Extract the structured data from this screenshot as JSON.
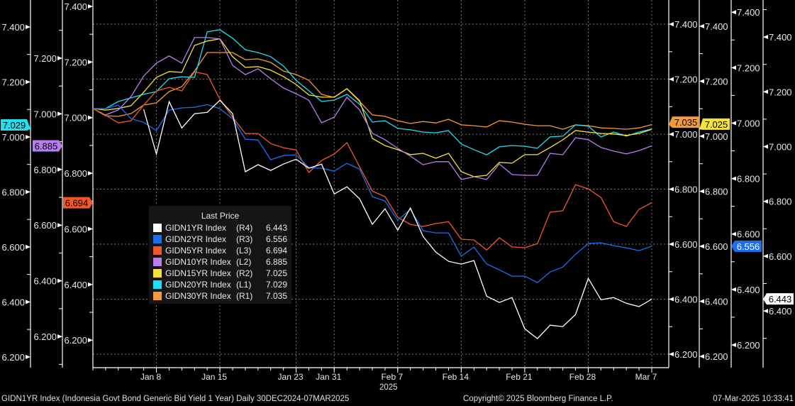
{
  "chart_data": {
    "type": "line",
    "title": "",
    "year_label": "2025",
    "x_count": 45,
    "x_ticks": [
      {
        "index": 5,
        "label": "Jan 8"
      },
      {
        "index": 10,
        "label": "Jan 15"
      },
      {
        "index": 16,
        "label": "Jan 23"
      },
      {
        "index": 19,
        "label": "Jan 31"
      },
      {
        "index": 24,
        "label": "Feb 7"
      },
      {
        "index": 29,
        "label": "Feb 14"
      },
      {
        "index": 34,
        "label": "Feb 21"
      },
      {
        "index": 39,
        "label": "Feb 28"
      },
      {
        "index": 44,
        "label": "Mar 7"
      }
    ],
    "grid": true,
    "grid_axis": "R1",
    "axes": [
      {
        "id": "L1",
        "side": "left",
        "range": [
          6.161,
          7.498
        ],
        "ticks": [
          6.2,
          6.4,
          6.6,
          6.8,
          7.0,
          7.2,
          7.4
        ]
      },
      {
        "id": "L2",
        "side": "left",
        "range": [
          6.088,
          7.409
        ],
        "ticks": [
          6.2,
          6.4,
          6.6,
          6.8,
          7.0,
          7.2
        ]
      },
      {
        "id": "L3",
        "side": "left",
        "range": [
          6.101,
          7.423
        ],
        "ticks": [
          6.2,
          6.4,
          6.6,
          6.8,
          7.0,
          7.2,
          7.4
        ]
      },
      {
        "id": "R1",
        "side": "right",
        "range": [
          6.151,
          7.488
        ],
        "ticks": [
          6.2,
          6.4,
          6.6,
          6.8,
          7.0,
          7.2,
          7.4
        ]
      },
      {
        "id": "R2",
        "side": "right",
        "range": [
          6.159,
          7.495
        ],
        "ticks": [
          6.2,
          6.4,
          6.6,
          6.8,
          7.0,
          7.2,
          7.4
        ]
      },
      {
        "id": "R3",
        "side": "right",
        "range": [
          6.118,
          7.444
        ],
        "ticks": [
          6.2,
          6.4,
          6.6,
          6.8,
          7.0,
          7.2,
          7.4
        ]
      },
      {
        "id": "R4",
        "side": "right",
        "range": [
          6.193,
          7.535
        ],
        "ticks": [
          6.4,
          6.6,
          6.8,
          7.0,
          7.2,
          7.4
        ]
      }
    ],
    "legend_title": "Last Price",
    "legend_position": "lower-left",
    "series": [
      {
        "name": "GIDN1YR Index",
        "axis": "R4",
        "last": "6.443",
        "color": "#ffffff",
        "tag_text": "#000000",
        "values": [
          null,
          null,
          null,
          null,
          7.136,
          6.973,
          7.164,
          7.068,
          7.12,
          7.125,
          7.169,
          7.12,
          6.908,
          6.934,
          6.913,
          6.936,
          6.954,
          6.921,
          6.936,
          6.827,
          6.853,
          6.809,
          6.716,
          6.773,
          6.695,
          6.776,
          6.672,
          6.615,
          6.581,
          6.571,
          6.584,
          6.454,
          6.431,
          6.449,
          6.335,
          6.299,
          6.348,
          6.343,
          6.387,
          6.519,
          6.441,
          6.449,
          6.428,
          6.416,
          6.443
        ]
      },
      {
        "name": "GIDN2YR Index",
        "axis": "R3",
        "last": "6.556",
        "color": "#1a6ff0",
        "tag_text": "#ffffff",
        "values": [
          7.052,
          7.052,
          7.065,
          7.016,
          7.003,
          6.973,
          7.047,
          7.055,
          7.057,
          7.067,
          7.052,
          7.016,
          6.942,
          6.939,
          6.868,
          6.883,
          6.886,
          6.84,
          6.837,
          6.827,
          6.855,
          6.834,
          6.735,
          6.719,
          6.65,
          6.689,
          6.612,
          6.604,
          6.604,
          6.52,
          6.553,
          6.492,
          6.471,
          6.448,
          6.448,
          6.425,
          6.463,
          6.481,
          6.527,
          6.566,
          6.568,
          6.558,
          6.55,
          6.54,
          6.556
        ]
      },
      {
        "name": "GIDN5YR Index",
        "axis": "L3",
        "last": "6.694",
        "color": "#f0582a",
        "tag_text": "#000000",
        "values": [
          7.032,
          7.009,
          6.981,
          6.989,
          7.045,
          7.096,
          7.109,
          7.096,
          7.165,
          7.155,
          7.066,
          7.002,
          6.943,
          6.943,
          6.907,
          6.892,
          6.884,
          6.803,
          6.846,
          6.869,
          6.91,
          6.823,
          6.736,
          6.716,
          6.642,
          6.616,
          6.609,
          6.619,
          6.626,
          6.563,
          6.56,
          6.524,
          6.568,
          6.535,
          6.532,
          6.547,
          6.66,
          6.665,
          6.759,
          6.744,
          6.713,
          6.626,
          6.609,
          6.67,
          6.694
        ]
      },
      {
        "name": "GIDN10YR Index",
        "axis": "L2",
        "last": "6.885",
        "color": "#b87ef0",
        "tag_text": "#000000",
        "values": [
          7.019,
          6.996,
          7.014,
          7.062,
          7.136,
          7.182,
          7.208,
          7.182,
          7.274,
          7.274,
          7.269,
          7.174,
          7.141,
          7.162,
          7.126,
          7.093,
          7.072,
          7.049,
          6.968,
          6.988,
          7.06,
          7.014,
          6.93,
          6.907,
          6.876,
          6.848,
          6.817,
          6.828,
          6.828,
          6.764,
          6.774,
          6.764,
          6.82,
          6.782,
          6.779,
          6.779,
          6.858,
          6.853,
          6.914,
          6.907,
          6.879,
          6.866,
          6.856,
          6.868,
          6.885
        ]
      },
      {
        "name": "GIDN15YR Index",
        "axis": "R2",
        "last": "7.025",
        "color": "#f5e23a",
        "tag_text": "#000000",
        "values": [
          7.101,
          7.095,
          7.101,
          7.111,
          7.16,
          7.214,
          7.235,
          7.232,
          7.33,
          7.346,
          7.354,
          7.289,
          7.25,
          7.253,
          7.24,
          7.217,
          7.188,
          7.15,
          7.142,
          7.142,
          7.173,
          7.129,
          6.992,
          6.966,
          6.951,
          6.933,
          6.938,
          6.92,
          6.938,
          6.871,
          6.853,
          6.858,
          6.905,
          6.902,
          6.933,
          6.933,
          6.959,
          6.987,
          7.021,
          7.015,
          7.01,
          7.008,
          7.003,
          7.01,
          7.025
        ]
      },
      {
        "name": "GIDN20YR Index",
        "axis": "L1",
        "last": "7.029",
        "color": "#1ee0f0",
        "tag_text": "#000000",
        "values": [
          7.103,
          7.103,
          7.129,
          7.142,
          7.155,
          7.165,
          7.212,
          7.219,
          7.217,
          7.382,
          7.39,
          7.359,
          7.317,
          7.307,
          7.292,
          7.258,
          7.206,
          7.168,
          7.129,
          7.134,
          7.155,
          7.119,
          7.054,
          7.059,
          7.031,
          7.026,
          7.018,
          7.015,
          7.023,
          6.974,
          6.954,
          6.935,
          6.964,
          6.969,
          6.966,
          6.959,
          7.0,
          7.003,
          7.044,
          7.039,
          7.0,
          7.018,
          7.003,
          7.018,
          7.029
        ]
      },
      {
        "name": "GIDN30YR Index",
        "axis": "R1",
        "last": "7.035",
        "color": "#f59a3a",
        "tag_text": "#000000",
        "values": [
          7.093,
          7.067,
          7.065,
          7.075,
          7.106,
          7.114,
          7.155,
          7.173,
          7.23,
          7.297,
          7.297,
          7.297,
          7.271,
          7.274,
          7.261,
          7.23,
          7.217,
          7.196,
          7.145,
          7.134,
          7.165,
          7.119,
          7.07,
          7.065,
          7.049,
          7.039,
          7.046,
          7.041,
          7.054,
          7.034,
          7.031,
          7.026,
          7.049,
          7.044,
          7.036,
          7.031,
          7.031,
          7.018,
          7.034,
          7.031,
          7.023,
          7.021,
          7.018,
          7.023,
          7.035
        ]
      }
    ]
  },
  "footer": {
    "description": "GIDN1YR Index (Indonesia Govt Bond Generic Bid Yield 1 Year)  Daily 30DEC2024-07MAR2025",
    "copyright": "Copyright© 2025 Bloomberg Finance L.P.",
    "timestamp": "07-Mar-2025 10:33:41"
  }
}
